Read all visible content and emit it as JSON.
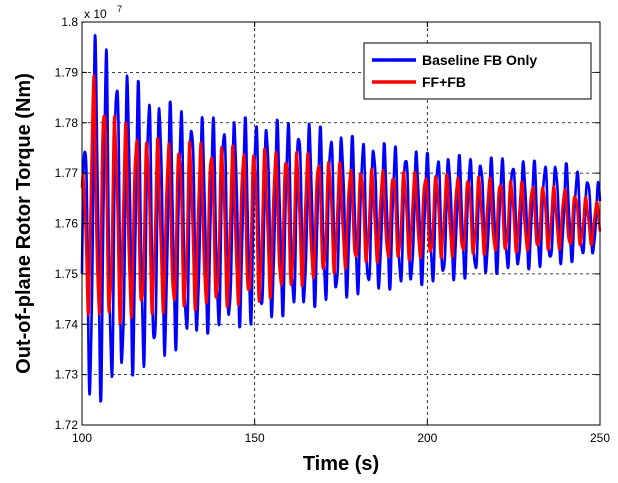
{
  "chart_data": {
    "type": "line",
    "title": "",
    "xlabel": "Time (s)",
    "ylabel": "Out-of-plane Rotor Torque (Nm)",
    "xlim": [
      100,
      250
    ],
    "ylim": [
      1.72,
      1.8
    ],
    "y_multiplier_label": "x 10",
    "y_multiplier_exponent": "7",
    "xticks": [
      "100",
      "150",
      "200",
      "250"
    ],
    "yticks": [
      "1.72",
      "1.73",
      "1.74",
      "1.75",
      "1.76",
      "1.77",
      "1.78",
      "1.79",
      "1.8"
    ],
    "grid": true,
    "legend_position": "top-right",
    "oscillation_period_s": 3.1,
    "series": [
      {
        "name": "Baseline FB Only",
        "color": "#0000ff",
        "envelope_t": [
          100,
          103,
          110,
          120,
          135,
          150,
          165,
          180,
          200,
          220,
          240,
          250
        ],
        "envelope_max": [
          1.772,
          1.798,
          1.792,
          1.786,
          1.781,
          1.781,
          1.78,
          1.777,
          1.774,
          1.773,
          1.772,
          1.768
        ],
        "envelope_min": [
          1.728,
          1.723,
          1.728,
          1.732,
          1.738,
          1.74,
          1.743,
          1.746,
          1.748,
          1.75,
          1.752,
          1.754
        ]
      },
      {
        "name": "FF+FB",
        "color": "#ff0000",
        "envelope_t": [
          100,
          103,
          110,
          120,
          135,
          150,
          165,
          180,
          200,
          220,
          240,
          250
        ],
        "envelope_max": [
          1.768,
          1.79,
          1.781,
          1.777,
          1.776,
          1.775,
          1.774,
          1.771,
          1.77,
          1.769,
          1.767,
          1.764
        ],
        "envelope_min": [
          1.745,
          1.74,
          1.74,
          1.742,
          1.743,
          1.744,
          1.748,
          1.752,
          1.753,
          1.754,
          1.755,
          1.756
        ]
      }
    ]
  }
}
